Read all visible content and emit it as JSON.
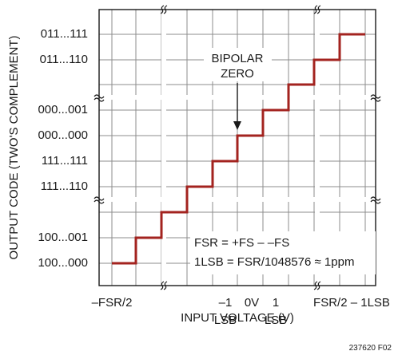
{
  "chart_data": {
    "type": "line",
    "subtype": "step transfer function",
    "xlabel": "INPUT VOLTAGE (V)",
    "ylabel": "OUTPUT CODE (TWO'S COMPLEMENT)",
    "x_ticks": [
      {
        "value": "-FSR/2",
        "label1": "–FSR/2",
        "label2": ""
      },
      {
        "value": "-1LSB",
        "label1": "–1",
        "label2": "LSB"
      },
      {
        "value": "0V",
        "label1": "0V",
        "label2": ""
      },
      {
        "value": "+1LSB",
        "label1": "1",
        "label2": "LSB"
      },
      {
        "value": "FSR/2-1LSB",
        "label1": "FSR/2 – 1LSB",
        "label2": ""
      }
    ],
    "y_ticks": [
      "011...111",
      "011...110",
      "000...001",
      "000...000",
      "111...111",
      "111...110",
      "100...001",
      "100...000"
    ],
    "steps": [
      {
        "x": "-FSR/2",
        "code": "100...000"
      },
      {
        "x": "-FSR/2+1LSB",
        "code": "100...001"
      },
      {
        "x": "-2LSB",
        "code": "111...110"
      },
      {
        "x": "-1LSB",
        "code": "111...111"
      },
      {
        "x": "0V",
        "code": "000...000"
      },
      {
        "x": "+1LSB",
        "code": "000...001"
      },
      {
        "x": "FSR/2-2LSB",
        "code": "011...110"
      },
      {
        "x": "FSR/2-1LSB",
        "code": "011...111"
      }
    ],
    "annotation": {
      "line1": "BIPOLAR",
      "line2": "ZERO"
    },
    "notes": [
      "FSR = +FS – –FS",
      "1LSB = FSR/1048576 ≈ 1ppm"
    ],
    "figure_id": "237620 F02",
    "line_color": "#a3231f",
    "grid": true
  }
}
